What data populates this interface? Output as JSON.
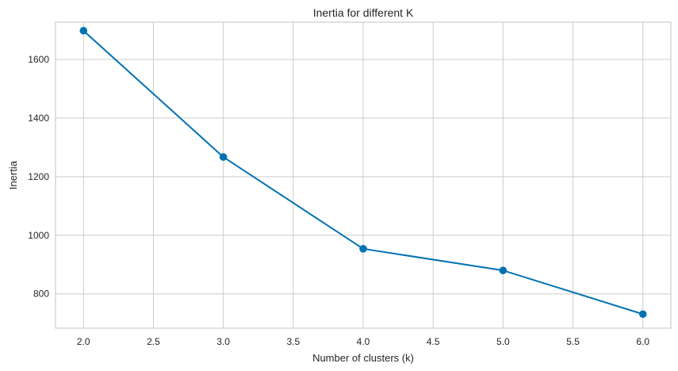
{
  "chart_data": {
    "type": "line",
    "title": "Inertia for different K",
    "xlabel": "Number of clusters (k)",
    "ylabel": "Inertia",
    "x": [
      2,
      3,
      4,
      5,
      6
    ],
    "series": [
      {
        "values": [
          1698,
          1267,
          954,
          880,
          731
        ]
      }
    ],
    "xlim": [
      1.8,
      6.2
    ],
    "ylim": [
      683,
      1727
    ],
    "xticks": [
      2.0,
      2.5,
      3.0,
      3.5,
      4.0,
      4.5,
      5.0,
      5.5,
      6.0
    ],
    "xtick_labels": [
      "2.0",
      "2.5",
      "3.0",
      "3.5",
      "4.0",
      "4.5",
      "5.0",
      "5.5",
      "6.0"
    ],
    "yticks": [
      800,
      1000,
      1200,
      1400,
      1600
    ],
    "ytick_labels": [
      "800",
      "1000",
      "1200",
      "1400",
      "1600"
    ],
    "grid": true,
    "marker": "circle",
    "line_color": "#0072b2",
    "grid_color": "#cccccc"
  }
}
